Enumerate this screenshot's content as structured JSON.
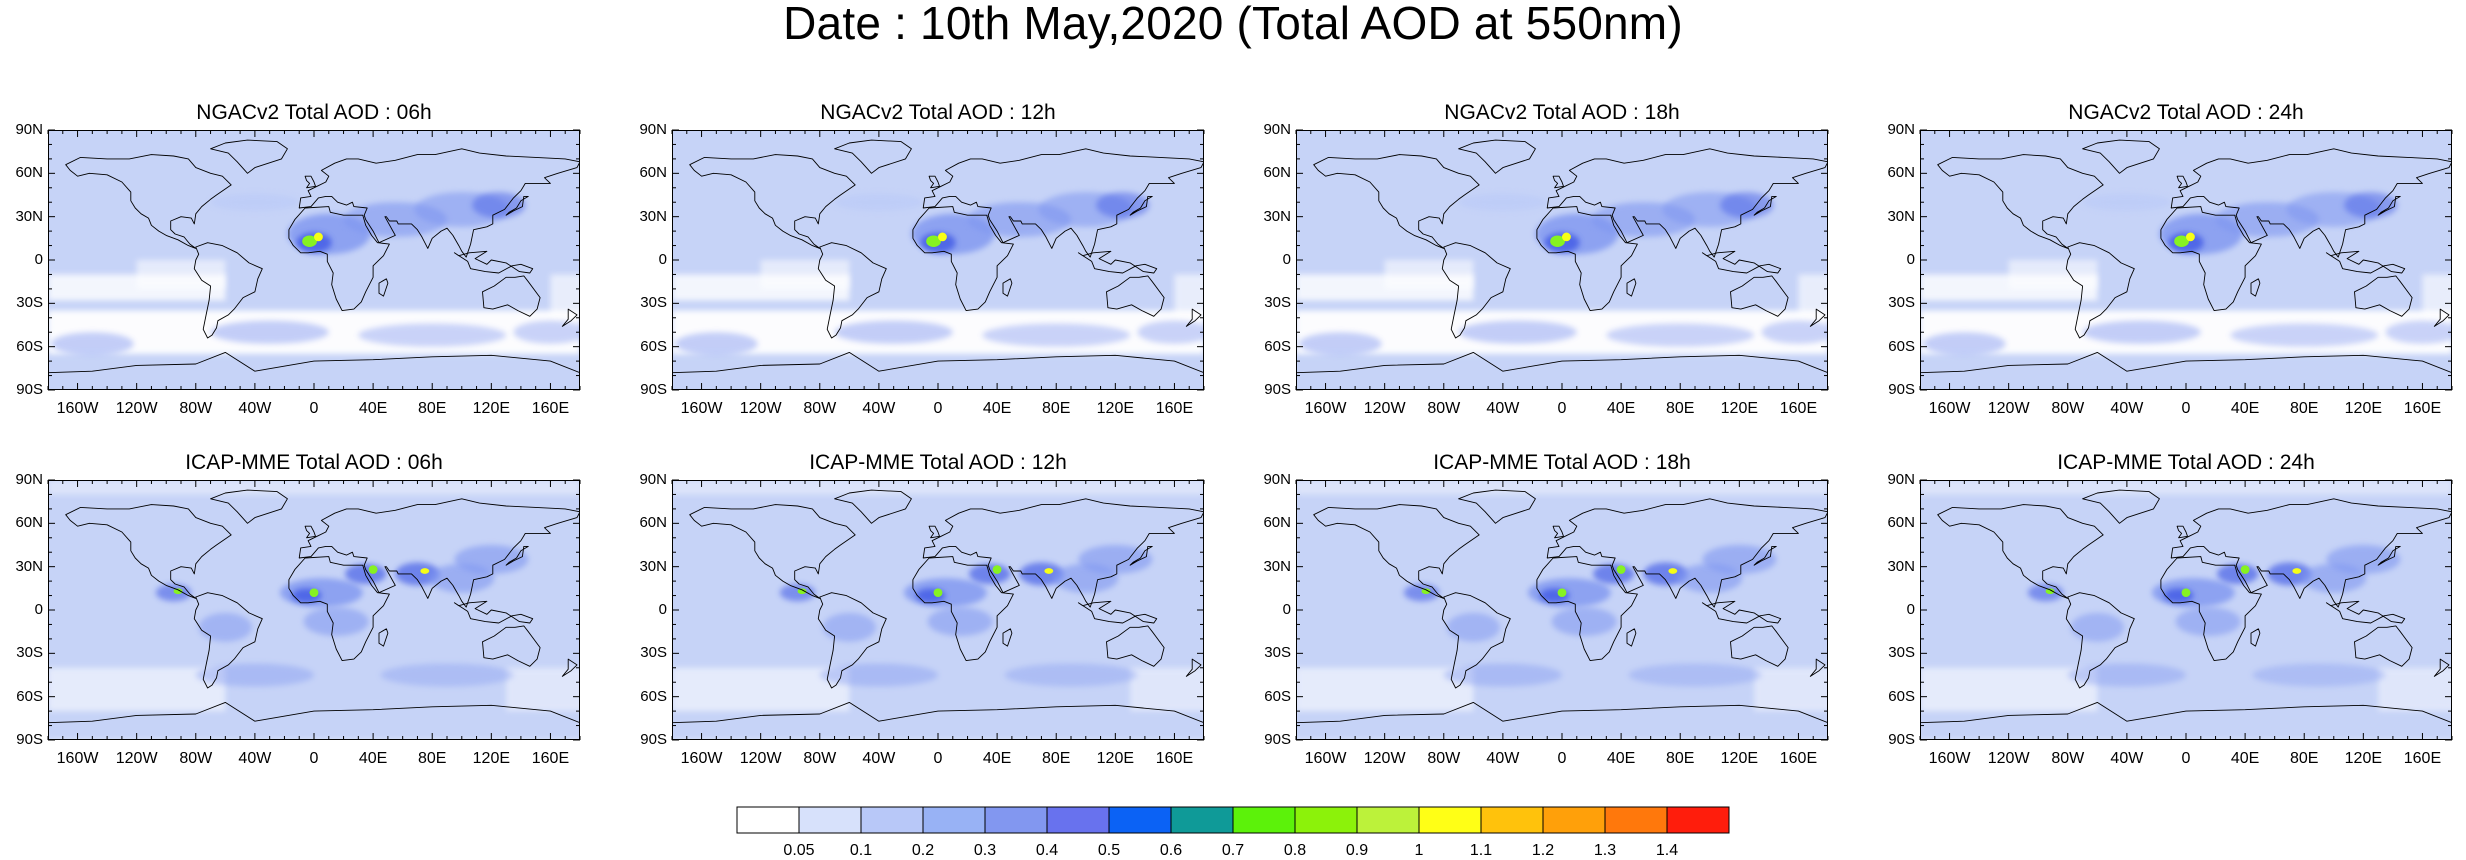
{
  "title": "Date : 10th May,2020 (Total AOD at 550nm)",
  "colors": {
    "sea_background": "#c6d3f7",
    "land_background": "#d5def8",
    "low": "#ffffff",
    "source_mid": "#7f96f0",
    "source_high": "#4a62e6",
    "hot": "#86f222",
    "hot2": "#f7ff16",
    "coast": "#000000"
  },
  "latitude_labels": [
    "90N",
    "60N",
    "30N",
    "0",
    "30S",
    "60S",
    "90S"
  ],
  "longitude_labels": [
    "160W",
    "120W",
    "80W",
    "40W",
    "0",
    "40E",
    "80E",
    "120E",
    "160E"
  ],
  "panels": [
    {
      "title": "NGACv2 Total AOD : 06h",
      "model": "NGACv2",
      "forecast_hour": "06h"
    },
    {
      "title": "NGACv2 Total AOD : 12h",
      "model": "NGACv2",
      "forecast_hour": "12h"
    },
    {
      "title": "NGACv2 Total AOD : 18h",
      "model": "NGACv2",
      "forecast_hour": "18h"
    },
    {
      "title": "NGACv2 Total AOD : 24h",
      "model": "NGACv2",
      "forecast_hour": "24h"
    },
    {
      "title": "ICAP-MME Total AOD : 06h",
      "model": "ICAP-MME",
      "forecast_hour": "06h"
    },
    {
      "title": "ICAP-MME Total AOD : 12h",
      "model": "ICAP-MME",
      "forecast_hour": "12h"
    },
    {
      "title": "ICAP-MME Total AOD : 18h",
      "model": "ICAP-MME",
      "forecast_hour": "18h"
    },
    {
      "title": "ICAP-MME Total AOD : 24h",
      "model": "ICAP-MME",
      "forecast_hour": "24h"
    }
  ],
  "colorbar": {
    "colors": [
      "#ffffff",
      "#d7e1fb",
      "#b8c8f8",
      "#98b2f5",
      "#8297f0",
      "#6872ee",
      "#0b62f5",
      "#0f9a98",
      "#5cf20a",
      "#8cf20a",
      "#bcf23a",
      "#ffff16",
      "#ffc20c",
      "#ffa00a",
      "#ff780c",
      "#ff1d0c"
    ],
    "labels": [
      "0.05",
      "0.1",
      "0.2",
      "0.3",
      "0.4",
      "0.5",
      "0.6",
      "0.7",
      "0.8",
      "0.9",
      "1",
      "1.1",
      "1.2",
      "1.3",
      "1.4"
    ]
  }
}
